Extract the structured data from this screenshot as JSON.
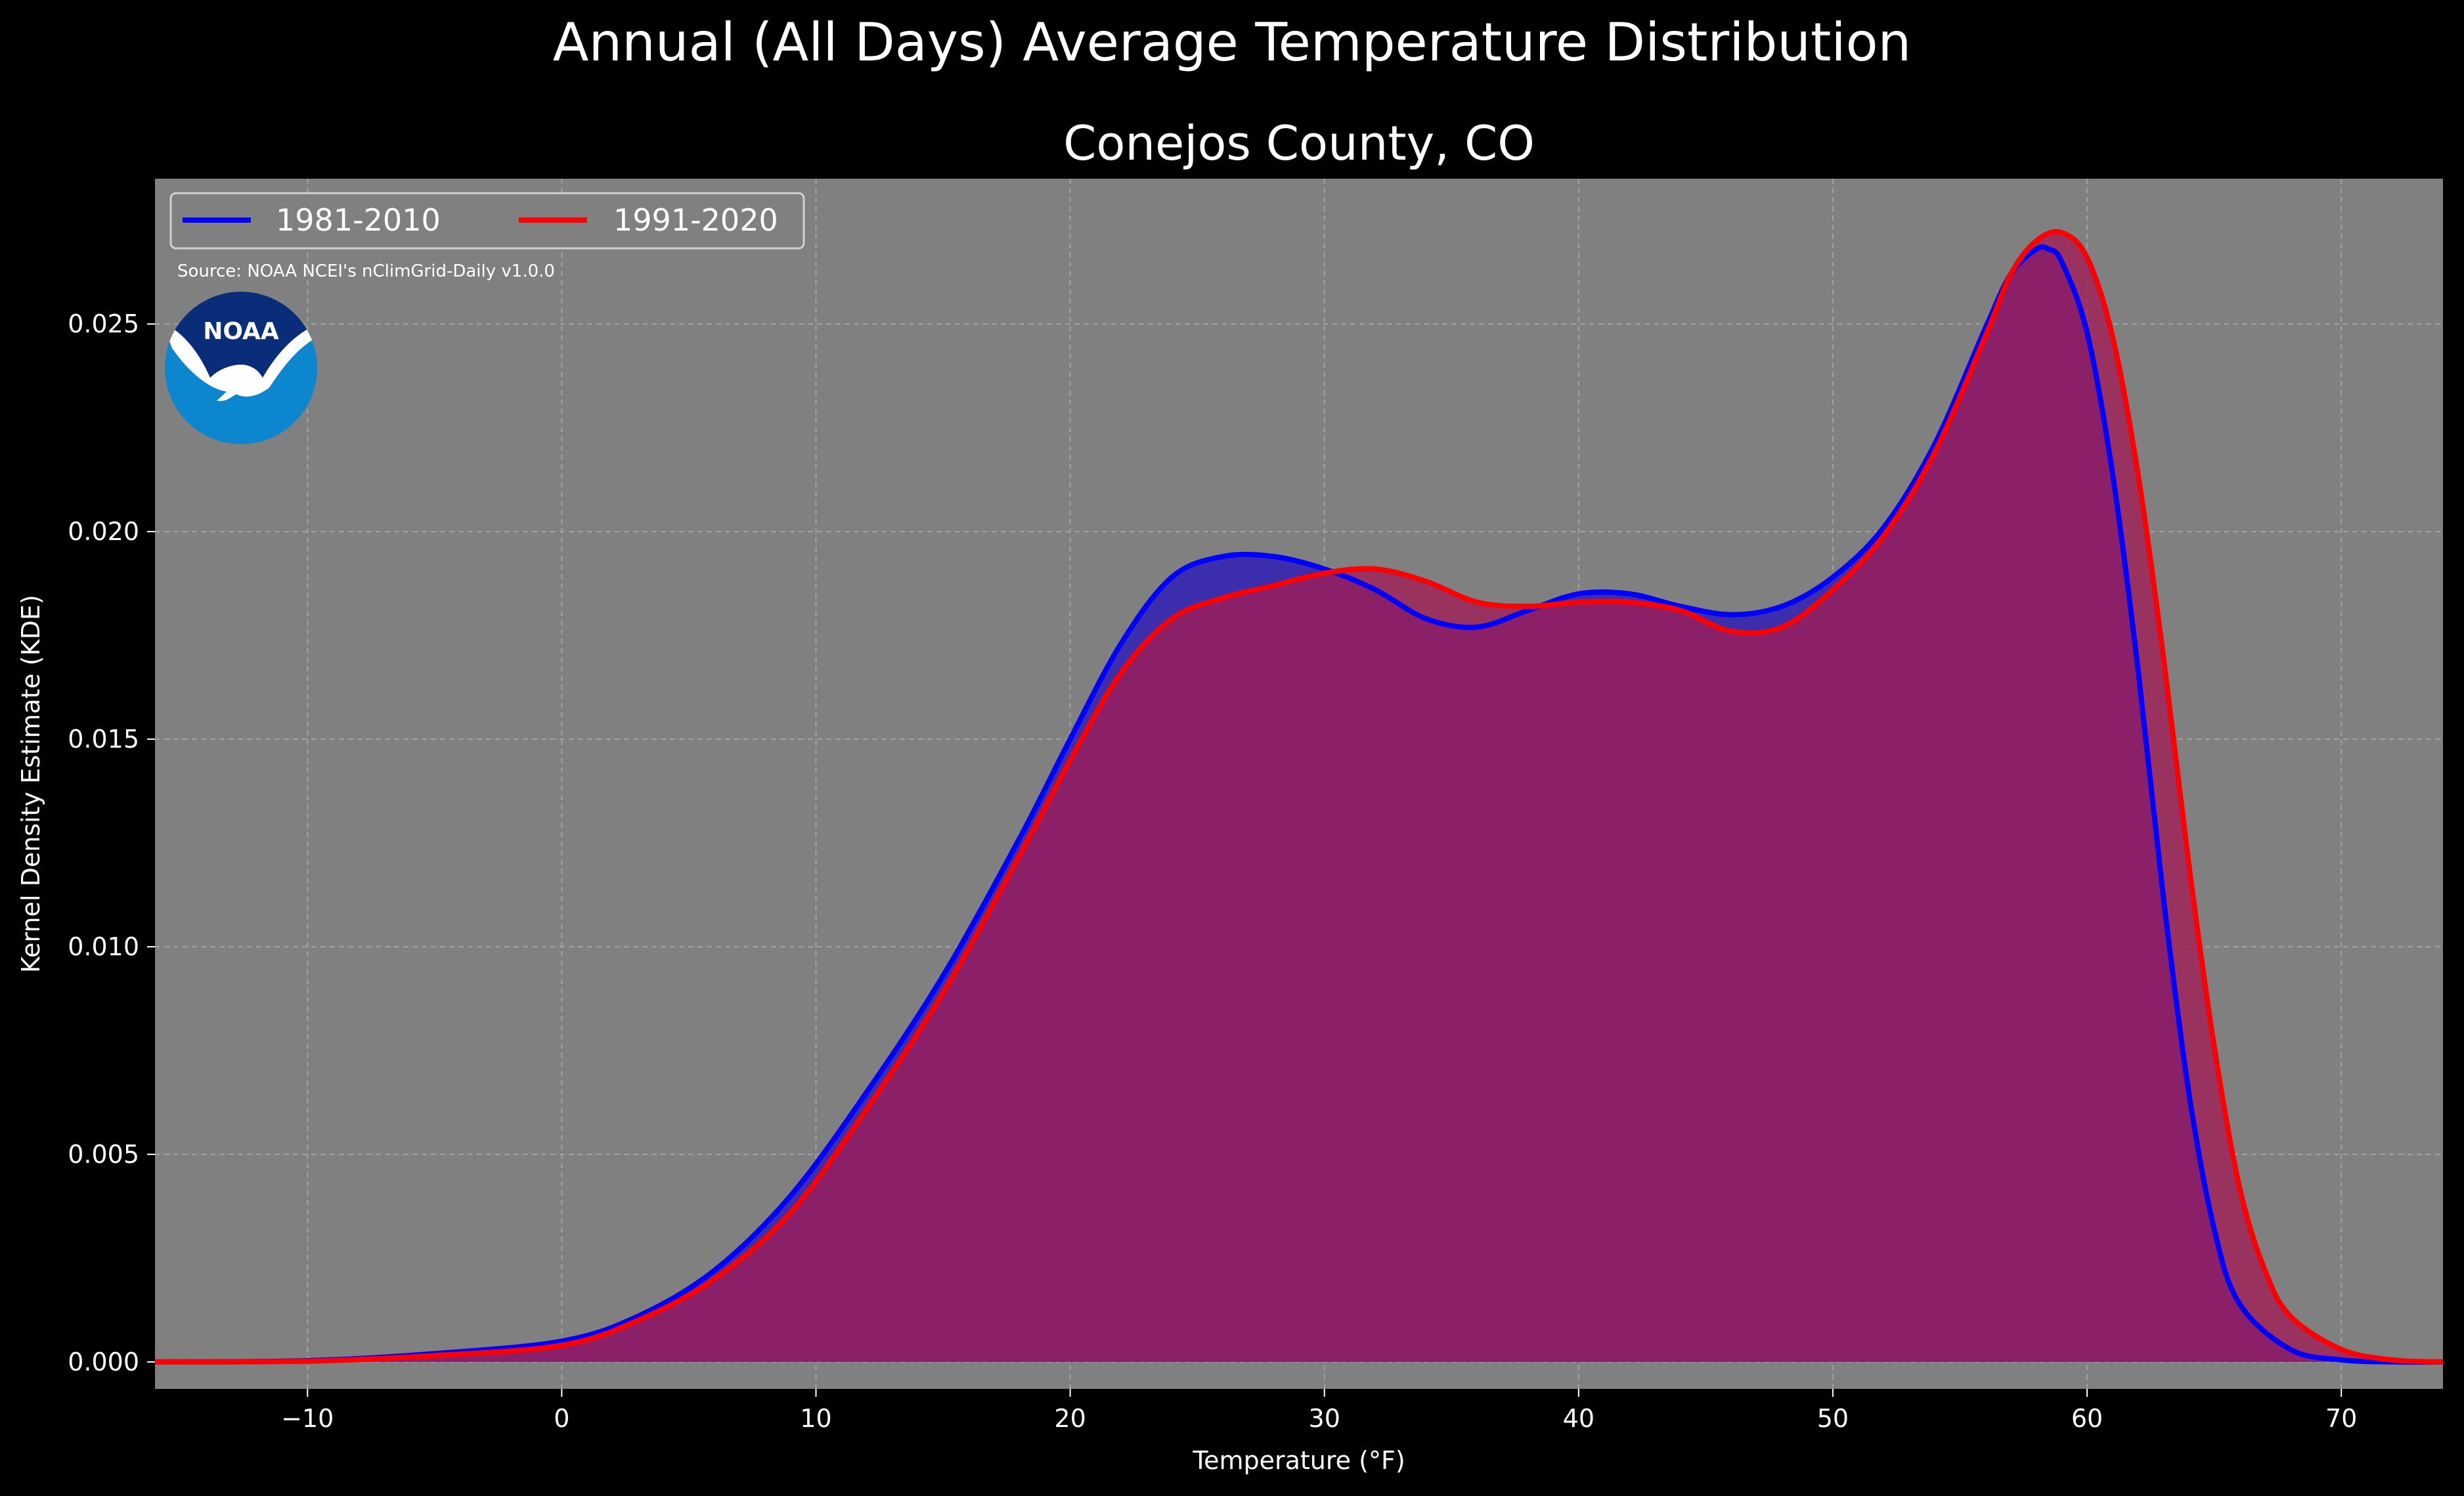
{
  "figure": {
    "suptitle": "Annual (All Days) Average Temperature Distribution",
    "title": "Conejos County, CO",
    "source": "Source: NOAA NCEI's nClimGrid-Daily v1.0.0",
    "logo_text": "NOAA"
  },
  "colors": {
    "figure_bg": "#000000",
    "plot_bg": "#808080",
    "series_a": "#0000ff",
    "series_b": "#ff0000",
    "fill_a": "#2f1fb3",
    "fill_b": "#a11c56",
    "overlap": "#9e1e5e",
    "grid": "#b0b0b0",
    "logo_dark": "#0a2d7a",
    "logo_light": "#0b86cf"
  },
  "chart_data": {
    "type": "area",
    "title": "Conejos County, CO",
    "xlabel": "Temperature (°F)",
    "ylabel": "Kernel Density Estimate (KDE)",
    "xlim": [
      -16,
      74
    ],
    "ylim": [
      -0.00065,
      0.0285
    ],
    "xticks": [
      -10,
      0,
      10,
      20,
      30,
      40,
      50,
      60,
      70
    ],
    "xtick_labels": [
      "−10",
      "0",
      "10",
      "20",
      "30",
      "40",
      "50",
      "60",
      "70"
    ],
    "yticks": [
      0.0,
      0.005,
      0.01,
      0.015,
      0.02,
      0.025
    ],
    "ytick_labels": [
      "0.000",
      "0.005",
      "0.010",
      "0.015",
      "0.020",
      "0.025"
    ],
    "grid": true,
    "legend": "top-left",
    "series": [
      {
        "name": "1981-2010",
        "color": "#0000ff",
        "x": [
          -16,
          -10,
          -5,
          0,
          3,
          6,
          9,
          12,
          15,
          18,
          20,
          22,
          24,
          26,
          28,
          30,
          32,
          34,
          36,
          38,
          40,
          42,
          44,
          46,
          48,
          50,
          52,
          54,
          56,
          57,
          58,
          58.5,
          59,
          60,
          61,
          62,
          63,
          64,
          65,
          66,
          68,
          70,
          72,
          74
        ],
        "y": [
          0.0,
          3e-05,
          0.0002,
          0.0005,
          0.0011,
          0.0022,
          0.004,
          0.0065,
          0.0093,
          0.0126,
          0.015,
          0.0173,
          0.0189,
          0.0194,
          0.0194,
          0.0191,
          0.0186,
          0.0179,
          0.0177,
          0.0181,
          0.0185,
          0.0185,
          0.0182,
          0.018,
          0.0182,
          0.0189,
          0.0201,
          0.0221,
          0.0249,
          0.0262,
          0.0268,
          0.0268,
          0.0265,
          0.0248,
          0.0214,
          0.0167,
          0.0112,
          0.0065,
          0.0032,
          0.0014,
          0.0003,
          5e-05,
          0.0,
          0.0
        ]
      },
      {
        "name": "1991-2020",
        "color": "#ff0000",
        "x": [
          -16,
          -10,
          -5,
          0,
          3,
          6,
          9,
          12,
          15,
          18,
          20,
          22,
          24,
          26,
          28,
          30,
          32,
          34,
          36,
          38,
          40,
          42,
          44,
          46,
          48,
          50,
          52,
          54,
          56,
          57,
          58,
          59,
          60,
          61,
          62,
          63,
          64,
          65,
          66,
          67,
          68,
          70,
          72,
          74
        ],
        "y": [
          0.0,
          2e-05,
          0.00015,
          0.0004,
          0.001,
          0.002,
          0.0036,
          0.0061,
          0.0089,
          0.0122,
          0.0145,
          0.0166,
          0.0179,
          0.0184,
          0.0187,
          0.019,
          0.0191,
          0.0188,
          0.0183,
          0.0182,
          0.0183,
          0.0183,
          0.0181,
          0.0176,
          0.0177,
          0.0186,
          0.0199,
          0.0219,
          0.0247,
          0.0262,
          0.027,
          0.0272,
          0.0266,
          0.0247,
          0.0214,
          0.017,
          0.012,
          0.0076,
          0.0042,
          0.0022,
          0.0011,
          0.0003,
          5e-05,
          0.0
        ]
      }
    ]
  }
}
